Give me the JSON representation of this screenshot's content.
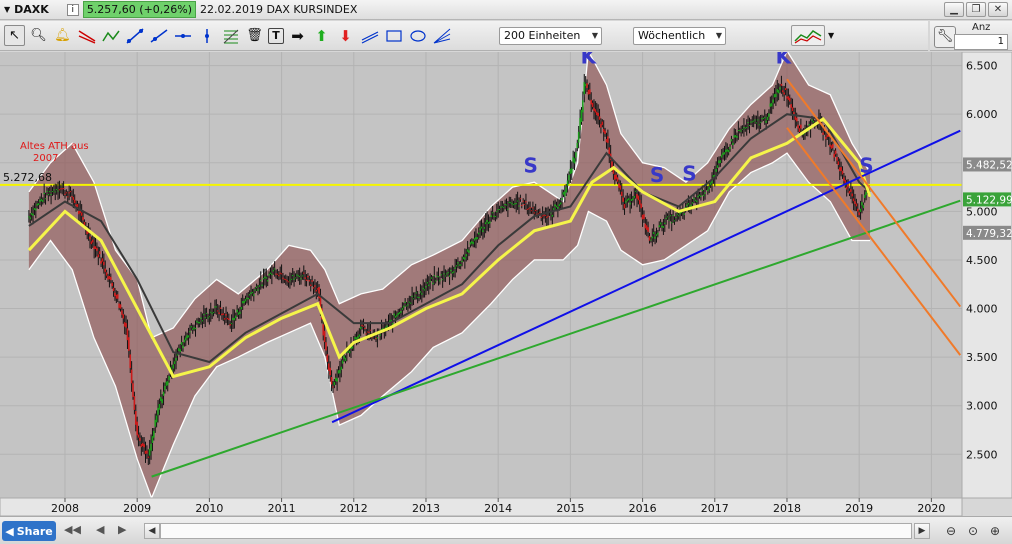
{
  "titlebar": {
    "symbol": "DAXK",
    "price_change": "5.257,60 (+0,26%)",
    "date_title": "22.02.2019 DAX KURSINDEX",
    "info_label": "i"
  },
  "toolbar": {
    "units_dropdown": "200 Einheiten",
    "interval_dropdown": "Wöchentlich"
  },
  "side_panel": {
    "anz_label": "Anz",
    "anz_value": "1"
  },
  "bottombar": {
    "share_label": "Share"
  },
  "colors": {
    "chart_bg": "#c4c4c4",
    "band": "#8a4a4a",
    "ma_yellow": "#f5f54a",
    "ma_dark": "#3a3a3a",
    "line_blue": "#1010e8",
    "line_green": "#2ea82e",
    "line_orange": "#f07a2a",
    "level_yellow": "#f5f500",
    "annot_blue": "#3838c8",
    "annot_red": "#e01818",
    "price_box_green": "#3aa33a"
  },
  "chart_data": {
    "type": "line",
    "title": "",
    "xlabel": "",
    "ylabel": "",
    "x_ticks": [
      "2008",
      "2009",
      "2010",
      "2011",
      "2012",
      "2013",
      "2014",
      "2015",
      "2016",
      "2017",
      "2018",
      "2019",
      "2020"
    ],
    "y_ticks": [
      "6.500",
      "6.000",
      "5.500",
      "5.000",
      "4.500",
      "4.000",
      "3.500",
      "3.000",
      "2.500"
    ],
    "ylim": [
      2050,
      6640
    ],
    "price_labels": [
      {
        "label": "5.482,52",
        "value": 5482.52,
        "style": "gray"
      },
      {
        "label": "5.122,99",
        "value": 5122.99,
        "style": "green"
      },
      {
        "label": "4.779,32",
        "value": 4779.32,
        "style": "gray"
      }
    ],
    "level_line": {
      "label": "5.272,68",
      "value": 5272.68
    },
    "annotations": [
      {
        "text": "Altes ATH aus 2007",
        "color": "red"
      },
      {
        "text": "K",
        "t": 2015.25,
        "y": 6520
      },
      {
        "text": "K",
        "t": 2017.95,
        "y": 6520
      },
      {
        "text": "S",
        "t": 2014.45,
        "y": 5400
      },
      {
        "text": "S",
        "t": 2016.2,
        "y": 5300
      },
      {
        "text": "S",
        "t": 2016.65,
        "y": 5320
      },
      {
        "text": "S",
        "t": 2019.1,
        "y": 5400
      }
    ],
    "trendlines": [
      {
        "name": "blue",
        "from": [
          2011.7,
          2830
        ],
        "to": [
          2020.4,
          5830
        ]
      },
      {
        "name": "green",
        "from": [
          2009.2,
          2270
        ],
        "to": [
          2020.4,
          5110
        ]
      },
      {
        "name": "orange-1",
        "from": [
          2018.0,
          6360
        ],
        "to": [
          2020.4,
          4020
        ]
      },
      {
        "name": "orange-2",
        "from": [
          2018.0,
          5860
        ],
        "to": [
          2020.4,
          3520
        ]
      }
    ],
    "series": [
      {
        "key": "price",
        "x": [
          2007.5,
          2007.7,
          2007.9,
          2008.1,
          2008.3,
          2008.5,
          2008.7,
          2008.85,
          2009.0,
          2009.15,
          2009.3,
          2009.5,
          2009.7,
          2009.9,
          2010.1,
          2010.3,
          2010.5,
          2010.7,
          2010.9,
          2011.1,
          2011.3,
          2011.5,
          2011.6,
          2011.7,
          2011.9,
          2012.1,
          2012.3,
          2012.5,
          2012.7,
          2012.9,
          2013.1,
          2013.3,
          2013.5,
          2013.7,
          2013.9,
          2014.1,
          2014.3,
          2014.5,
          2014.7,
          2014.9,
          2015.1,
          2015.2,
          2015.3,
          2015.5,
          2015.6,
          2015.75,
          2015.9,
          2016.1,
          2016.3,
          2016.5,
          2016.7,
          2016.9,
          2017.1,
          2017.3,
          2017.5,
          2017.7,
          2017.9,
          2018.0,
          2018.2,
          2018.4,
          2018.6,
          2018.8,
          2019.0,
          2019.15
        ],
        "values": [
          4950,
          5150,
          5250,
          5150,
          4800,
          4500,
          4150,
          3800,
          2700,
          2450,
          3000,
          3450,
          3750,
          3900,
          4000,
          3850,
          4100,
          4250,
          4400,
          4300,
          4350,
          4200,
          3600,
          3200,
          3550,
          3800,
          3700,
          3850,
          4050,
          4150,
          4300,
          4350,
          4500,
          4750,
          4950,
          5050,
          5100,
          5000,
          4950,
          5150,
          5700,
          6350,
          6100,
          5750,
          5400,
          5050,
          5200,
          4700,
          4900,
          4950,
          5100,
          5250,
          5550,
          5800,
          5900,
          5950,
          6300,
          6200,
          5800,
          5950,
          5700,
          5300,
          5000,
          5257
        ]
      },
      {
        "key": "ma_yellow",
        "x": [
          2007.5,
          2008.0,
          2008.5,
          2009.0,
          2009.5,
          2010.0,
          2010.5,
          2011.0,
          2011.5,
          2011.8,
          2012.0,
          2012.5,
          2013.0,
          2013.5,
          2014.0,
          2014.5,
          2015.0,
          2015.3,
          2015.6,
          2016.0,
          2016.5,
          2017.0,
          2017.5,
          2018.0,
          2018.5,
          2019.0,
          2019.15
        ],
        "values": [
          4600,
          5000,
          4700,
          4000,
          3300,
          3400,
          3700,
          3900,
          4050,
          3500,
          3650,
          3800,
          4000,
          4150,
          4500,
          4800,
          4900,
          5300,
          5450,
          5200,
          5000,
          5100,
          5550,
          5700,
          5950,
          5500,
          5150
        ]
      },
      {
        "key": "ma_dark",
        "x": [
          2007.5,
          2008.0,
          2008.5,
          2009.0,
          2009.5,
          2010.0,
          2010.5,
          2011.0,
          2011.5,
          2012.0,
          2012.5,
          2013.0,
          2013.5,
          2014.0,
          2014.5,
          2015.0,
          2015.5,
          2016.0,
          2016.5,
          2017.0,
          2017.5,
          2018.0,
          2018.5,
          2019.0,
          2019.15
        ],
        "values": [
          4850,
          5100,
          4900,
          4300,
          3550,
          3450,
          3750,
          3950,
          4150,
          3850,
          3850,
          4050,
          4250,
          4650,
          4950,
          5050,
          5600,
          5200,
          5050,
          5350,
          5750,
          6000,
          5950,
          5300,
          5200
        ]
      },
      {
        "key": "band_upper",
        "x": [
          2007.5,
          2007.8,
          2008.1,
          2008.4,
          2008.7,
          2009.0,
          2009.2,
          2009.5,
          2009.8,
          2010.1,
          2010.4,
          2010.8,
          2011.1,
          2011.4,
          2011.6,
          2011.8,
          2012.1,
          2012.4,
          2012.8,
          2013.1,
          2013.5,
          2013.9,
          2014.2,
          2014.5,
          2014.9,
          2015.1,
          2015.25,
          2015.5,
          2015.7,
          2016.0,
          2016.3,
          2016.6,
          2016.9,
          2017.2,
          2017.5,
          2017.8,
          2018.0,
          2018.3,
          2018.6,
          2018.9,
          2019.15
        ],
        "values": [
          5200,
          5500,
          5700,
          5300,
          4600,
          4300,
          3700,
          3800,
          4100,
          4300,
          4150,
          4400,
          4650,
          4600,
          4400,
          4050,
          4150,
          4200,
          4450,
          4550,
          4700,
          5050,
          5250,
          5300,
          5100,
          5500,
          6650,
          6300,
          5800,
          5500,
          5450,
          5300,
          5500,
          5850,
          6100,
          6300,
          6650,
          6300,
          6200,
          5700,
          5400
        ]
      },
      {
        "key": "band_lower",
        "x": [
          2007.5,
          2007.8,
          2008.1,
          2008.4,
          2008.7,
          2009.0,
          2009.2,
          2009.5,
          2009.8,
          2010.1,
          2010.4,
          2010.8,
          2011.1,
          2011.4,
          2011.6,
          2011.8,
          2012.1,
          2012.4,
          2012.8,
          2013.1,
          2013.5,
          2013.9,
          2014.2,
          2014.5,
          2014.9,
          2015.1,
          2015.25,
          2015.5,
          2015.7,
          2016.0,
          2016.3,
          2016.6,
          2016.9,
          2017.2,
          2017.5,
          2017.8,
          2018.0,
          2018.3,
          2018.6,
          2018.9,
          2019.15
        ],
        "values": [
          4400,
          4700,
          4400,
          3700,
          3200,
          2450,
          2050,
          2600,
          3100,
          3400,
          3500,
          3650,
          3750,
          3850,
          3500,
          2800,
          2900,
          3100,
          3350,
          3600,
          3750,
          4050,
          4300,
          4500,
          4500,
          4650,
          5000,
          4900,
          4600,
          4450,
          4500,
          4650,
          4800,
          5200,
          5400,
          5500,
          5600,
          5300,
          5100,
          4700,
          4700
        ]
      }
    ]
  }
}
